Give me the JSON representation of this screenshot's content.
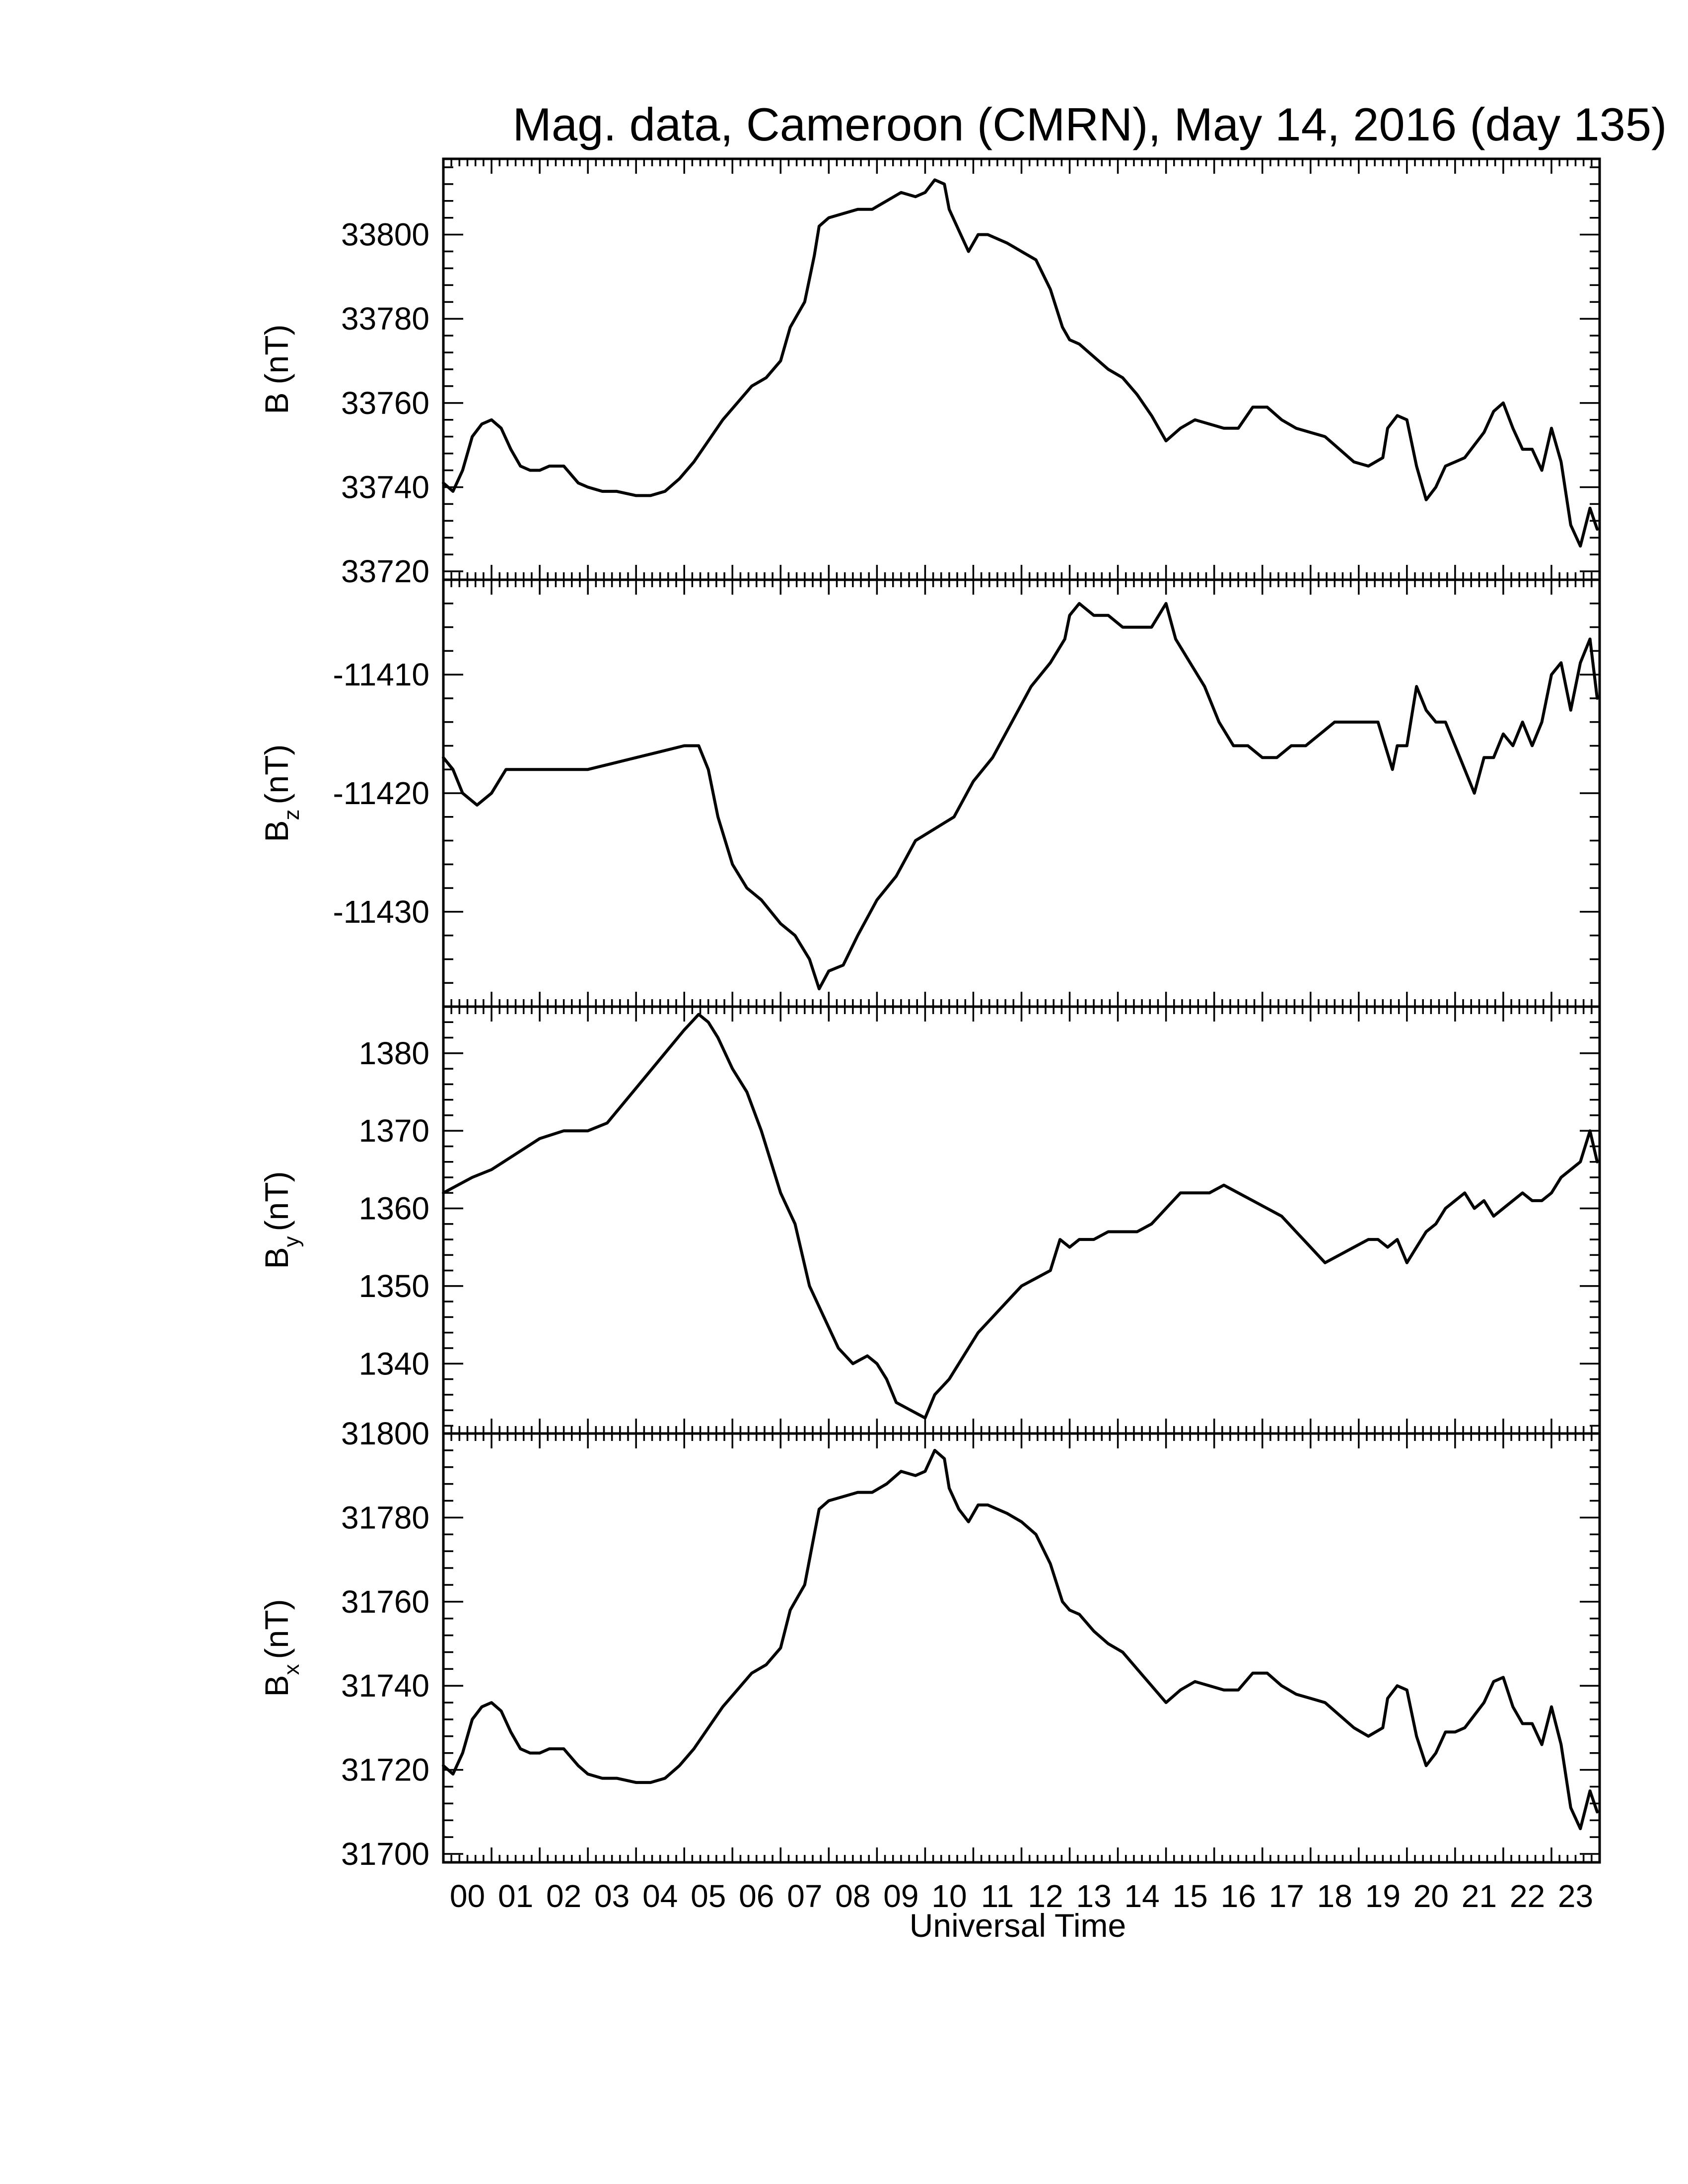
{
  "chart_data": {
    "type": "line",
    "title": "Mag. data, Cameroon (CMRN), May 14, 2016 (day 135)",
    "xlabel": "Universal Time",
    "x_unit": "hours UT",
    "xlim": [
      0,
      24
    ],
    "x_ticks": [
      "00",
      "01",
      "02",
      "03",
      "04",
      "05",
      "06",
      "07",
      "08",
      "09",
      "10",
      "11",
      "12",
      "13",
      "14",
      "15",
      "16",
      "17",
      "18",
      "19",
      "20",
      "21",
      "22",
      "23"
    ],
    "line_color": "#000000",
    "panels": [
      {
        "id": "B",
        "ylabel": "B (nT)",
        "ylabel_main": "B",
        "ylabel_sub": "",
        "ylabel_unit": "(nT)",
        "ylim": [
          33718,
          33818
        ],
        "y_ticks": [
          33720,
          33740,
          33760,
          33780,
          33800
        ],
        "x": [
          0,
          0.1,
          0.2,
          0.4,
          0.6,
          0.8,
          1.0,
          1.2,
          1.4,
          1.6,
          1.8,
          2.0,
          2.2,
          2.5,
          2.8,
          3.0,
          3.3,
          3.6,
          4.0,
          4.3,
          4.6,
          4.9,
          5.2,
          5.5,
          5.8,
          6.1,
          6.4,
          6.7,
          7.0,
          7.2,
          7.5,
          7.7,
          7.8,
          8.0,
          8.3,
          8.6,
          8.9,
          9.2,
          9.5,
          9.8,
          10.0,
          10.2,
          10.4,
          10.5,
          10.7,
          10.9,
          11.1,
          11.3,
          11.5,
          11.7,
          12.0,
          12.3,
          12.6,
          12.85,
          13.0,
          13.2,
          13.5,
          13.8,
          14.1,
          14.4,
          14.7,
          15.0,
          15.3,
          15.6,
          15.9,
          16.2,
          16.5,
          16.8,
          17.1,
          17.4,
          17.7,
          18.0,
          18.3,
          18.6,
          18.9,
          19.2,
          19.5,
          19.6,
          19.8,
          20.0,
          20.2,
          20.4,
          20.6,
          20.8,
          21.0,
          21.2,
          21.4,
          21.6,
          21.8,
          22.0,
          22.2,
          22.4,
          22.6,
          22.8,
          23.0,
          23.2,
          23.4,
          23.6,
          23.8,
          23.95
        ],
        "y": [
          33741,
          33740,
          33739,
          33744,
          33752,
          33755,
          33756,
          33754,
          33749,
          33745,
          33744,
          33744,
          33745,
          33745,
          33741,
          33740,
          33739,
          33739,
          33738,
          33738,
          33739,
          33742,
          33746,
          33751,
          33756,
          33760,
          33764,
          33766,
          33770,
          33778,
          33784,
          33795,
          33802,
          33804,
          33805,
          33806,
          33806,
          33808,
          33810,
          33809,
          33810,
          33813,
          33812,
          33806,
          33801,
          33796,
          33800,
          33800,
          33799,
          33798,
          33796,
          33794,
          33787,
          33778,
          33775,
          33774,
          33771,
          33768,
          33766,
          33762,
          33757,
          33751,
          33754,
          33756,
          33755,
          33754,
          33754,
          33759,
          33759,
          33756,
          33754,
          33753,
          33752,
          33749,
          33746,
          33745,
          33747,
          33754,
          33757,
          33756,
          33745,
          33737,
          33740,
          33745,
          33746,
          33747,
          33750,
          33753,
          33758,
          33760,
          33754,
          33749,
          33749,
          33744,
          33754,
          33746,
          33731,
          33726,
          33735,
          33730
        ]
      },
      {
        "id": "Bz",
        "ylabel": "Bz (nT)",
        "ylabel_main": "B",
        "ylabel_sub": "z",
        "ylabel_unit": "(nT)",
        "ylim": [
          -11438,
          -11402
        ],
        "y_ticks": [
          -11430,
          -11420,
          -11410
        ],
        "x": [
          0,
          0.2,
          0.4,
          0.7,
          1.0,
          1.3,
          1.6,
          2.0,
          2.5,
          3.0,
          3.5,
          4.0,
          4.5,
          5.0,
          5.3,
          5.5,
          5.7,
          6.0,
          6.3,
          6.6,
          7.0,
          7.3,
          7.6,
          7.8,
          8.0,
          8.3,
          8.6,
          9.0,
          9.4,
          9.8,
          10.2,
          10.6,
          11.0,
          11.4,
          11.8,
          12.2,
          12.6,
          12.9,
          13.0,
          13.2,
          13.5,
          13.8,
          14.1,
          14.4,
          14.7,
          15.0,
          15.2,
          15.5,
          15.8,
          16.1,
          16.4,
          16.7,
          17.0,
          17.3,
          17.6,
          17.9,
          18.2,
          18.5,
          18.8,
          19.1,
          19.4,
          19.7,
          19.8,
          20.0,
          20.2,
          20.4,
          20.6,
          20.8,
          21.0,
          21.2,
          21.4,
          21.6,
          21.8,
          22.0,
          22.2,
          22.4,
          22.6,
          22.8,
          23.0,
          23.2,
          23.4,
          23.6,
          23.8,
          23.95
        ],
        "y": [
          -11417,
          -11418,
          -11420,
          -11421,
          -11420,
          -11418,
          -11418,
          -11418,
          -11418,
          -11418,
          -11417.5,
          -11417,
          -11416.5,
          -11416,
          -11416,
          -11418,
          -11422,
          -11426,
          -11428,
          -11429,
          -11431,
          -11432,
          -11434,
          -11436.5,
          -11435,
          -11434.5,
          -11432,
          -11429,
          -11427,
          -11424,
          -11423,
          -11422,
          -11419,
          -11417,
          -11414,
          -11411,
          -11409,
          -11407,
          -11405,
          -11404,
          -11405,
          -11405,
          -11406,
          -11406,
          -11406,
          -11404,
          -11407,
          -11409,
          -11411,
          -11414,
          -11416,
          -11416,
          -11417,
          -11417,
          -11416,
          -11416,
          -11415,
          -11414,
          -11414,
          -11414,
          -11414,
          -11418,
          -11416,
          -11416,
          -11411,
          -11413,
          -11414,
          -11414,
          -11416,
          -11418,
          -11420,
          -11417,
          -11417,
          -11415,
          -11416,
          -11414,
          -11416,
          -11414,
          -11410,
          -11409,
          -11413,
          -11409,
          -11407,
          -11412
        ]
      },
      {
        "id": "By",
        "ylabel": "By (nT)",
        "ylabel_main": "B",
        "ylabel_sub": "y",
        "ylabel_unit": "(nT)",
        "ylim": [
          1331,
          1386
        ],
        "y_ticks": [
          1340,
          1350,
          1360,
          1370,
          1380
        ],
        "x": [
          0,
          0.3,
          0.6,
          1.0,
          1.5,
          2.0,
          2.5,
          3.0,
          3.4,
          3.8,
          4.2,
          4.6,
          5.0,
          5.3,
          5.5,
          5.7,
          6.0,
          6.3,
          6.6,
          7.0,
          7.3,
          7.6,
          7.9,
          8.2,
          8.5,
          8.8,
          9.0,
          9.2,
          9.4,
          9.7,
          10.0,
          10.2,
          10.5,
          10.8,
          11.1,
          11.4,
          11.7,
          12.0,
          12.3,
          12.6,
          12.8,
          13.0,
          13.2,
          13.5,
          13.8,
          14.1,
          14.4,
          14.7,
          15.0,
          15.3,
          15.6,
          15.9,
          16.2,
          16.5,
          16.8,
          17.1,
          17.4,
          17.7,
          18.0,
          18.3,
          18.6,
          18.9,
          19.2,
          19.4,
          19.6,
          19.8,
          20.0,
          20.2,
          20.4,
          20.6,
          20.8,
          21.0,
          21.2,
          21.4,
          21.6,
          21.8,
          22.0,
          22.2,
          22.4,
          22.6,
          22.8,
          23.0,
          23.2,
          23.4,
          23.6,
          23.8,
          23.95
        ],
        "y": [
          1362,
          1363,
          1364,
          1365,
          1367,
          1369,
          1370,
          1370,
          1371,
          1374,
          1377,
          1380,
          1383,
          1385,
          1384,
          1382,
          1378,
          1375,
          1370,
          1362,
          1358,
          1350,
          1346,
          1342,
          1340,
          1341,
          1340,
          1338,
          1335,
          1334,
          1333,
          1336,
          1338,
          1341,
          1344,
          1346,
          1348,
          1350,
          1351,
          1352,
          1356,
          1355,
          1356,
          1356,
          1357,
          1357,
          1357,
          1358,
          1360,
          1362,
          1362,
          1362,
          1363,
          1362,
          1361,
          1360,
          1359,
          1357,
          1355,
          1353,
          1354,
          1355,
          1356,
          1356,
          1355,
          1356,
          1353,
          1355,
          1357,
          1358,
          1360,
          1361,
          1362,
          1360,
          1361,
          1359,
          1360,
          1361,
          1362,
          1361,
          1361,
          1362,
          1364,
          1365,
          1366,
          1370,
          1366
        ]
      },
      {
        "id": "Bx",
        "ylabel": "Bx (nT)",
        "ylabel_main": "B",
        "ylabel_sub": "x",
        "ylabel_unit": "(nT)",
        "ylim": [
          31698,
          31800
        ],
        "y_ticks": [
          31700,
          31720,
          31740,
          31760,
          31780,
          31800
        ],
        "x": [
          0,
          0.1,
          0.2,
          0.4,
          0.6,
          0.8,
          1.0,
          1.2,
          1.4,
          1.6,
          1.8,
          2.0,
          2.2,
          2.5,
          2.8,
          3.0,
          3.3,
          3.6,
          4.0,
          4.3,
          4.6,
          4.9,
          5.2,
          5.5,
          5.8,
          6.1,
          6.4,
          6.7,
          7.0,
          7.2,
          7.5,
          7.7,
          7.8,
          8.0,
          8.3,
          8.6,
          8.9,
          9.2,
          9.5,
          9.8,
          10.0,
          10.2,
          10.4,
          10.5,
          10.7,
          10.9,
          11.1,
          11.3,
          11.5,
          11.7,
          12.0,
          12.3,
          12.6,
          12.85,
          13.0,
          13.2,
          13.5,
          13.8,
          14.1,
          14.4,
          14.7,
          15.0,
          15.3,
          15.6,
          15.9,
          16.2,
          16.5,
          16.8,
          17.1,
          17.4,
          17.7,
          18.0,
          18.3,
          18.6,
          18.9,
          19.2,
          19.5,
          19.6,
          19.8,
          20.0,
          20.2,
          20.4,
          20.6,
          20.8,
          21.0,
          21.2,
          21.4,
          21.6,
          21.8,
          22.0,
          22.2,
          22.4,
          22.6,
          22.8,
          23.0,
          23.2,
          23.4,
          23.6,
          23.8,
          23.95
        ],
        "y": [
          31721,
          31720,
          31719,
          31724,
          31732,
          31735,
          31736,
          31734,
          31729,
          31725,
          31724,
          31724,
          31725,
          31725,
          31721,
          31719,
          31718,
          31718,
          31717,
          31717,
          31718,
          31721,
          31725,
          31730,
          31735,
          31739,
          31743,
          31745,
          31749,
          31758,
          31764,
          31776,
          31782,
          31784,
          31785,
          31786,
          31786,
          31788,
          31791,
          31790,
          31791,
          31796,
          31794,
          31787,
          31782,
          31779,
          31783,
          31783,
          31782,
          31781,
          31779,
          31776,
          31769,
          31760,
          31758,
          31757,
          31753,
          31750,
          31748,
          31744,
          31740,
          31736,
          31739,
          31741,
          31740,
          31739,
          31739,
          31743,
          31743,
          31740,
          31738,
          31737,
          31736,
          31733,
          31730,
          31728,
          31730,
          31737,
          31740,
          31739,
          31728,
          31721,
          31724,
          31729,
          31729,
          31730,
          31733,
          31736,
          31741,
          31742,
          31735,
          31731,
          31731,
          31726,
          31735,
          31726,
          31711,
          31706,
          31715,
          31710
        ]
      }
    ]
  }
}
